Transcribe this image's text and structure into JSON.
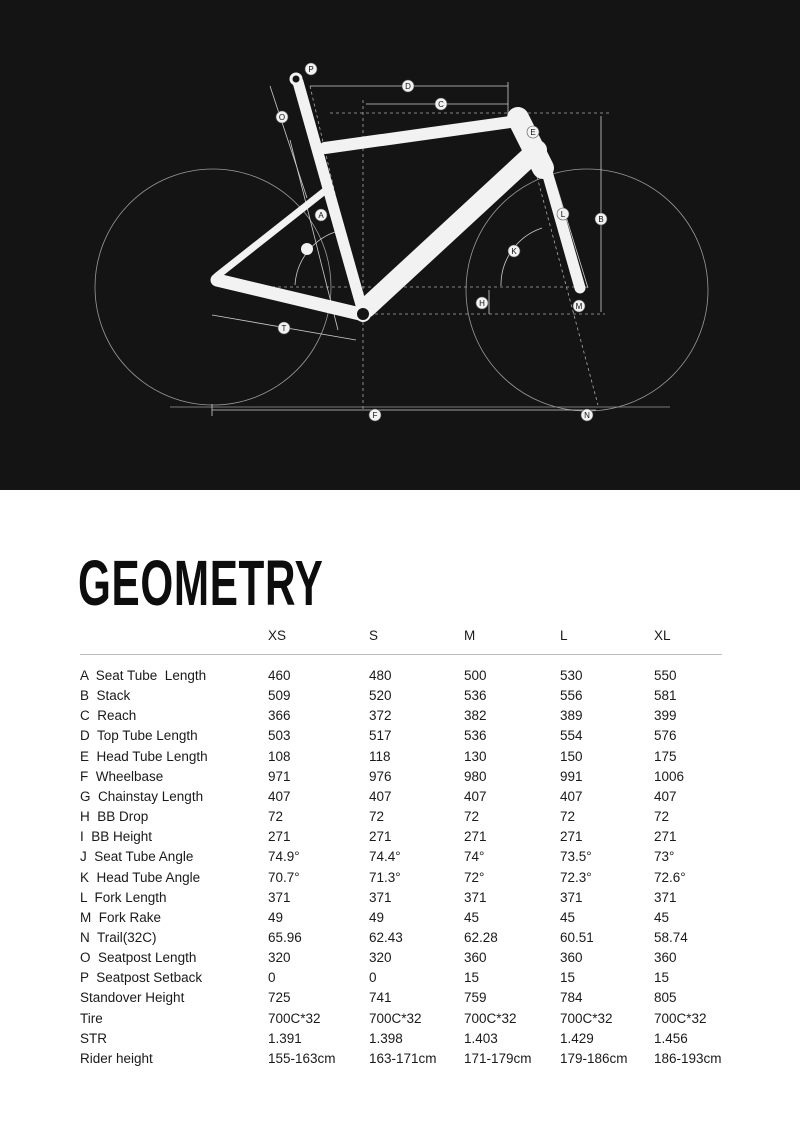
{
  "diagram": {
    "background": "#141414",
    "frame_color": "#f2f2f2",
    "labels": [
      "P",
      "D",
      "C",
      "O",
      "E",
      "A",
      "B",
      "L",
      "K",
      "H",
      "M",
      "T",
      "F",
      "N"
    ]
  },
  "title": "GEOMETRY",
  "table": {
    "columns": [
      "XS",
      "S",
      "M",
      "L",
      "XL"
    ],
    "rows": [
      {
        "label": "A  Seat Tube  Length",
        "values": [
          "460",
          "480",
          "500",
          "530",
          "550"
        ]
      },
      {
        "label": "B  Stack",
        "values": [
          "509",
          "520",
          "536",
          "556",
          "581"
        ]
      },
      {
        "label": "C  Reach",
        "values": [
          "366",
          "372",
          "382",
          "389",
          "399"
        ]
      },
      {
        "label": "D  Top Tube Length",
        "values": [
          "503",
          "517",
          "536",
          "554",
          "576"
        ]
      },
      {
        "label": "E  Head Tube Length",
        "values": [
          "108",
          "118",
          "130",
          "150",
          "175"
        ]
      },
      {
        "label": "F  Wheelbase",
        "values": [
          "971",
          "976",
          "980",
          "991",
          "1006"
        ]
      },
      {
        "label": "G  Chainstay Length",
        "values": [
          "407",
          "407",
          "407",
          "407",
          "407"
        ]
      },
      {
        "label": "H  BB Drop",
        "values": [
          "72",
          "72",
          "72",
          "72",
          "72"
        ]
      },
      {
        "label": "I  BB Height",
        "values": [
          "271",
          "271",
          "271",
          "271",
          "271"
        ]
      },
      {
        "label": "J  Seat Tube Angle",
        "values": [
          "74.9°",
          "74.4°",
          "74°",
          "73.5°",
          "73°"
        ]
      },
      {
        "label": "K  Head Tube Angle",
        "values": [
          "70.7°",
          "71.3°",
          "72°",
          "72.3°",
          "72.6°"
        ]
      },
      {
        "label": "L  Fork Length",
        "values": [
          "371",
          "371",
          "371",
          "371",
          "371"
        ]
      },
      {
        "label": "M  Fork Rake",
        "values": [
          "49",
          "49",
          "45",
          "45",
          "45"
        ]
      },
      {
        "label": "N  Trail(32C)",
        "values": [
          "65.96",
          "62.43",
          "62.28",
          "60.51",
          "58.74"
        ]
      },
      {
        "label": "O  Seatpost Length",
        "values": [
          "320",
          "320",
          "360",
          "360",
          "360"
        ]
      },
      {
        "label": "P  Seatpost Setback",
        "values": [
          "0",
          "0",
          "15",
          "15",
          "15"
        ]
      },
      {
        "label": "Standover Height",
        "values": [
          "725",
          "741",
          "759",
          "784",
          "805"
        ]
      },
      {
        "label": "Tire",
        "values": [
          "700C*32",
          "700C*32",
          "700C*32",
          "700C*32",
          "700C*32"
        ]
      },
      {
        "label": "STR",
        "values": [
          "1.391",
          "1.398",
          "1.403",
          "1.429",
          "1.456"
        ]
      },
      {
        "label": "Rider height",
        "values": [
          "155-163cm",
          "163-171cm",
          "171-179cm",
          "179-186cm",
          "186-193cm"
        ]
      }
    ]
  }
}
